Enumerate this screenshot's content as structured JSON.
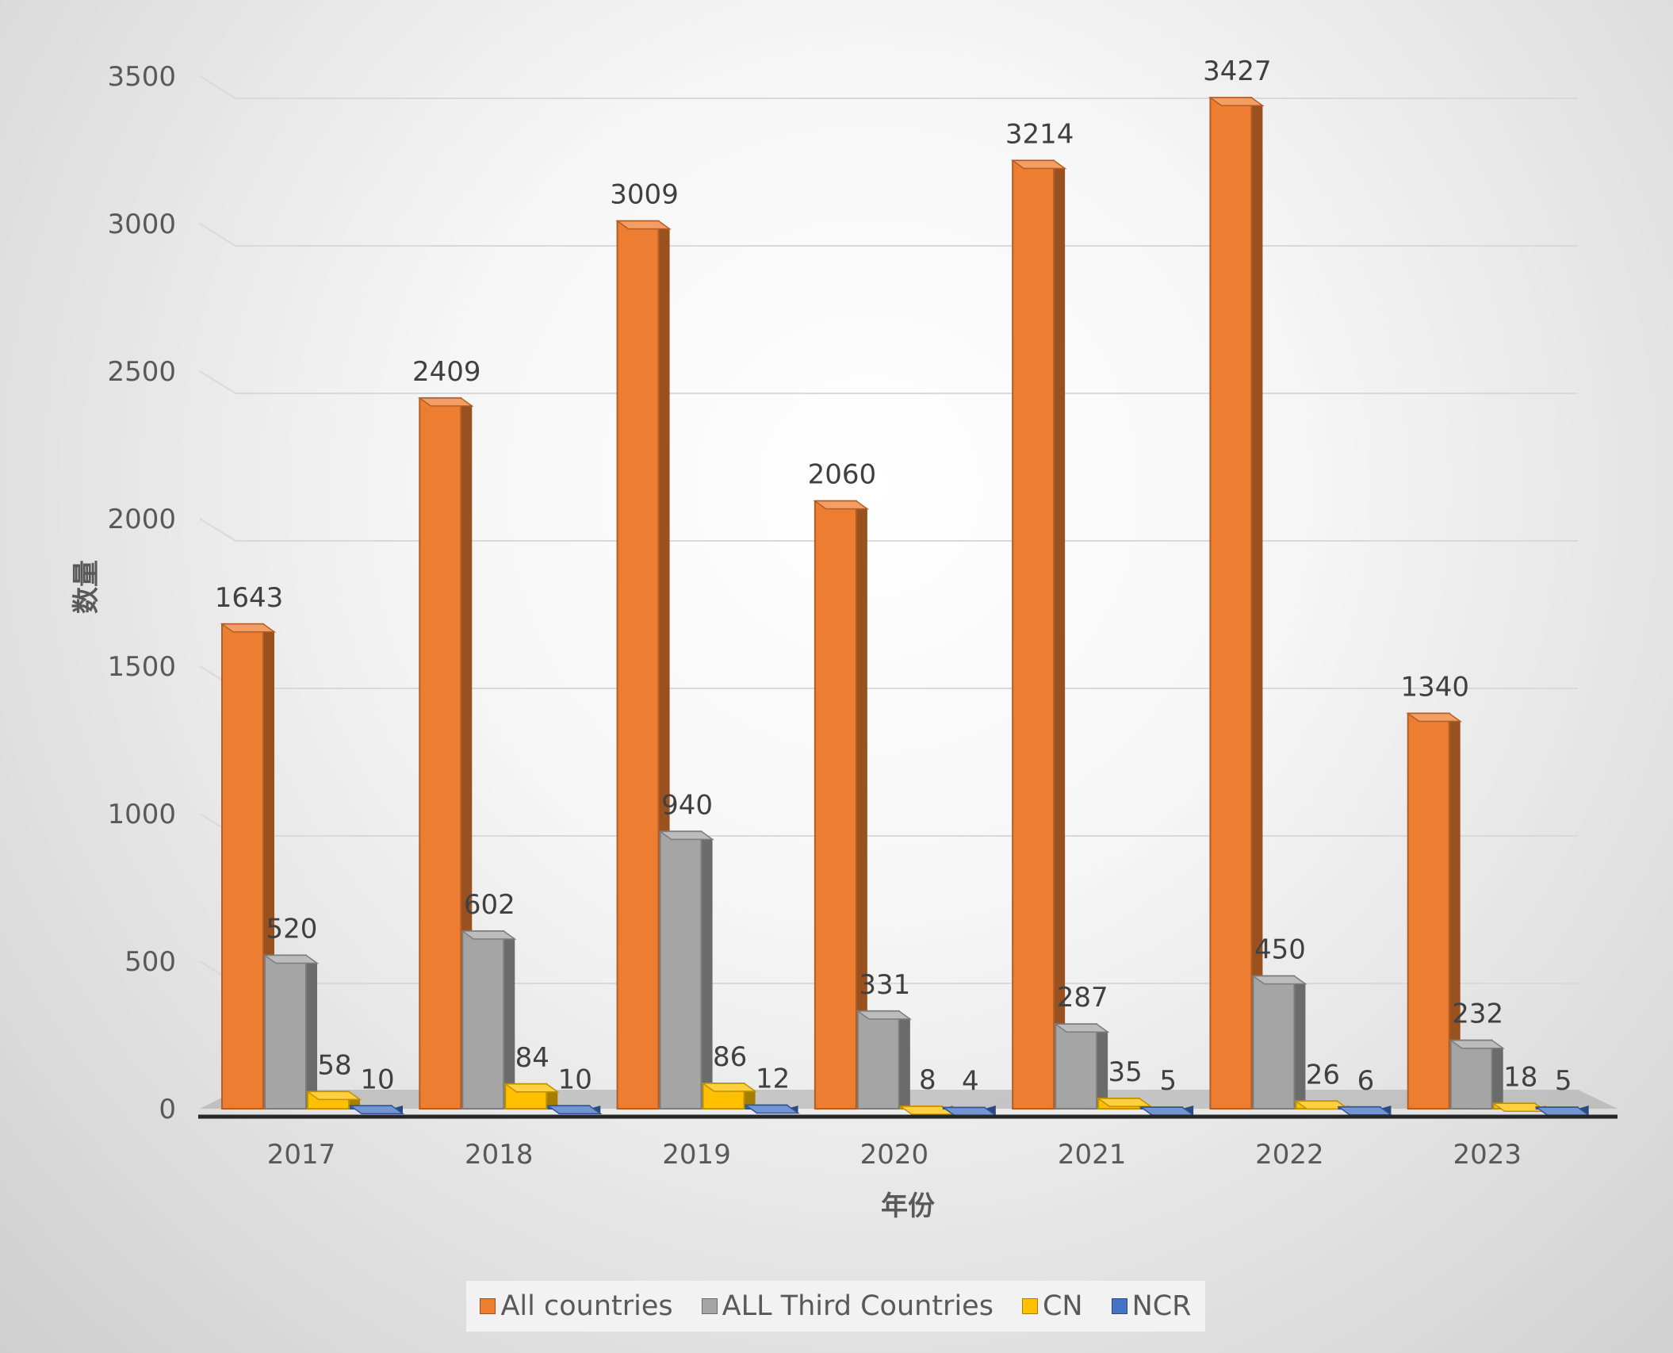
{
  "chart_data": {
    "type": "bar",
    "title": "",
    "xlabel": "年份",
    "ylabel": "数量",
    "categories": [
      "2017",
      "2018",
      "2019",
      "2020",
      "2021",
      "2022",
      "2023"
    ],
    "ylim": [
      0,
      3500
    ],
    "yticks": [
      "0",
      "500",
      "1000",
      "1500",
      "2000",
      "2500",
      "3000",
      "3500"
    ],
    "grid": true,
    "legend_position": "bottom",
    "series": [
      {
        "name": "All countries",
        "color": "#ED7D31",
        "values": [
          1643,
          2409,
          3009,
          2060,
          3214,
          3427,
          1340
        ]
      },
      {
        "name": "ALL Third Countries",
        "color": "#A5A5A5",
        "values": [
          520,
          602,
          940,
          331,
          287,
          450,
          232
        ]
      },
      {
        "name": "CN",
        "color": "#FFC000",
        "values": [
          58,
          84,
          86,
          8,
          35,
          26,
          18
        ]
      },
      {
        "name": "NCR",
        "color": "#4472C4",
        "values": [
          10,
          10,
          12,
          4,
          5,
          6,
          5
        ]
      }
    ]
  }
}
